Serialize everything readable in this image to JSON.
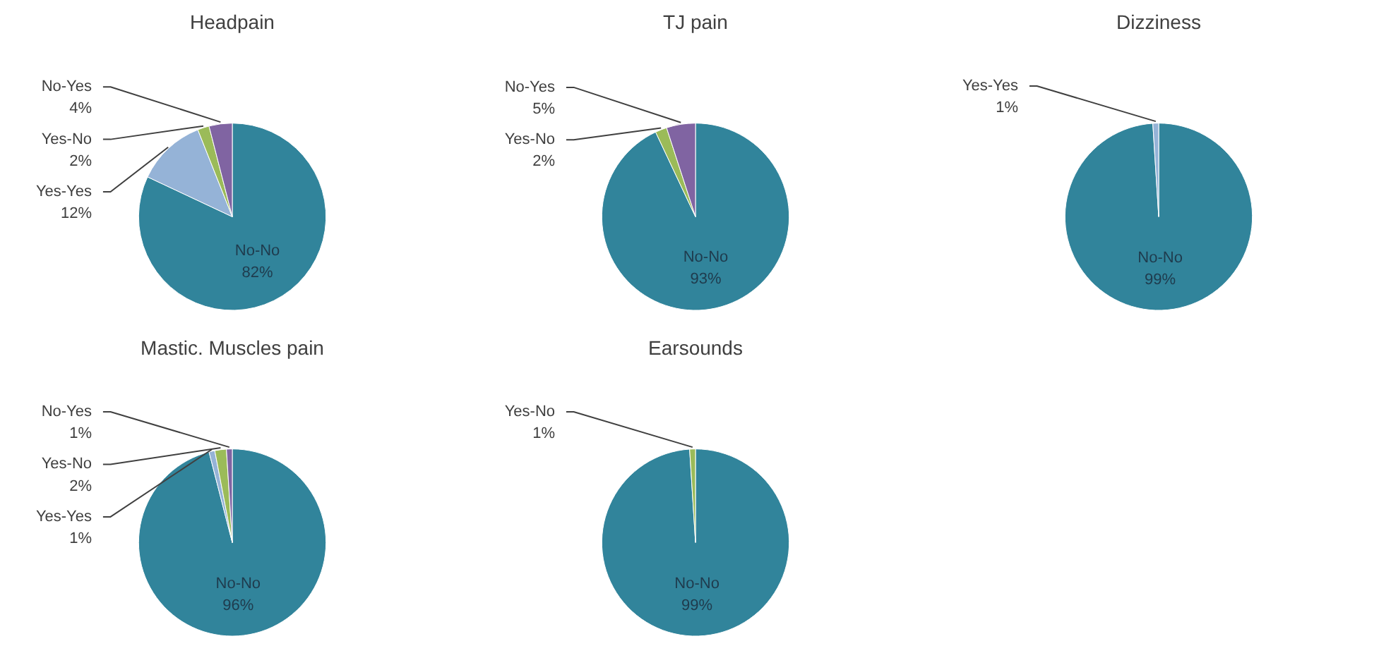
{
  "chart_data": [
    {
      "type": "pie",
      "title": "Headpain",
      "categories": [
        "No-No",
        "Yes-Yes",
        "Yes-No",
        "No-Yes"
      ],
      "values": [
        82,
        12,
        2,
        4
      ],
      "value_labels": [
        "82%",
        "12%",
        "2%",
        "4%"
      ],
      "colors": [
        "#31849b",
        "#95b3d7",
        "#9bbb59",
        "#8064a2"
      ]
    },
    {
      "type": "pie",
      "title": "TJ pain",
      "categories": [
        "No-No",
        "Yes-No",
        "No-Yes"
      ],
      "values": [
        93,
        2,
        5
      ],
      "value_labels": [
        "93%",
        "2%",
        "5%"
      ],
      "colors": [
        "#31849b",
        "#9bbb59",
        "#8064a2"
      ]
    },
    {
      "type": "pie",
      "title": "Dizziness",
      "categories": [
        "No-No",
        "Yes-Yes"
      ],
      "values": [
        99,
        1
      ],
      "value_labels": [
        "99%",
        "1%"
      ],
      "colors": [
        "#31849b",
        "#95b3d7"
      ]
    },
    {
      "type": "pie",
      "title": "Mastic. Muscles pain",
      "categories": [
        "No-No",
        "Yes-Yes",
        "Yes-No",
        "No-Yes"
      ],
      "values": [
        96,
        1,
        2,
        1
      ],
      "value_labels": [
        "96%",
        "1%",
        "2%",
        "1%"
      ],
      "colors": [
        "#31849b",
        "#95b3d7",
        "#9bbb59",
        "#8064a2"
      ]
    },
    {
      "type": "pie",
      "title": "Earsounds",
      "categories": [
        "No-No",
        "Yes-No"
      ],
      "values": [
        99,
        1
      ],
      "value_labels": [
        "99%",
        "1%"
      ],
      "colors": [
        "#31849b",
        "#9bbb59"
      ]
    }
  ]
}
